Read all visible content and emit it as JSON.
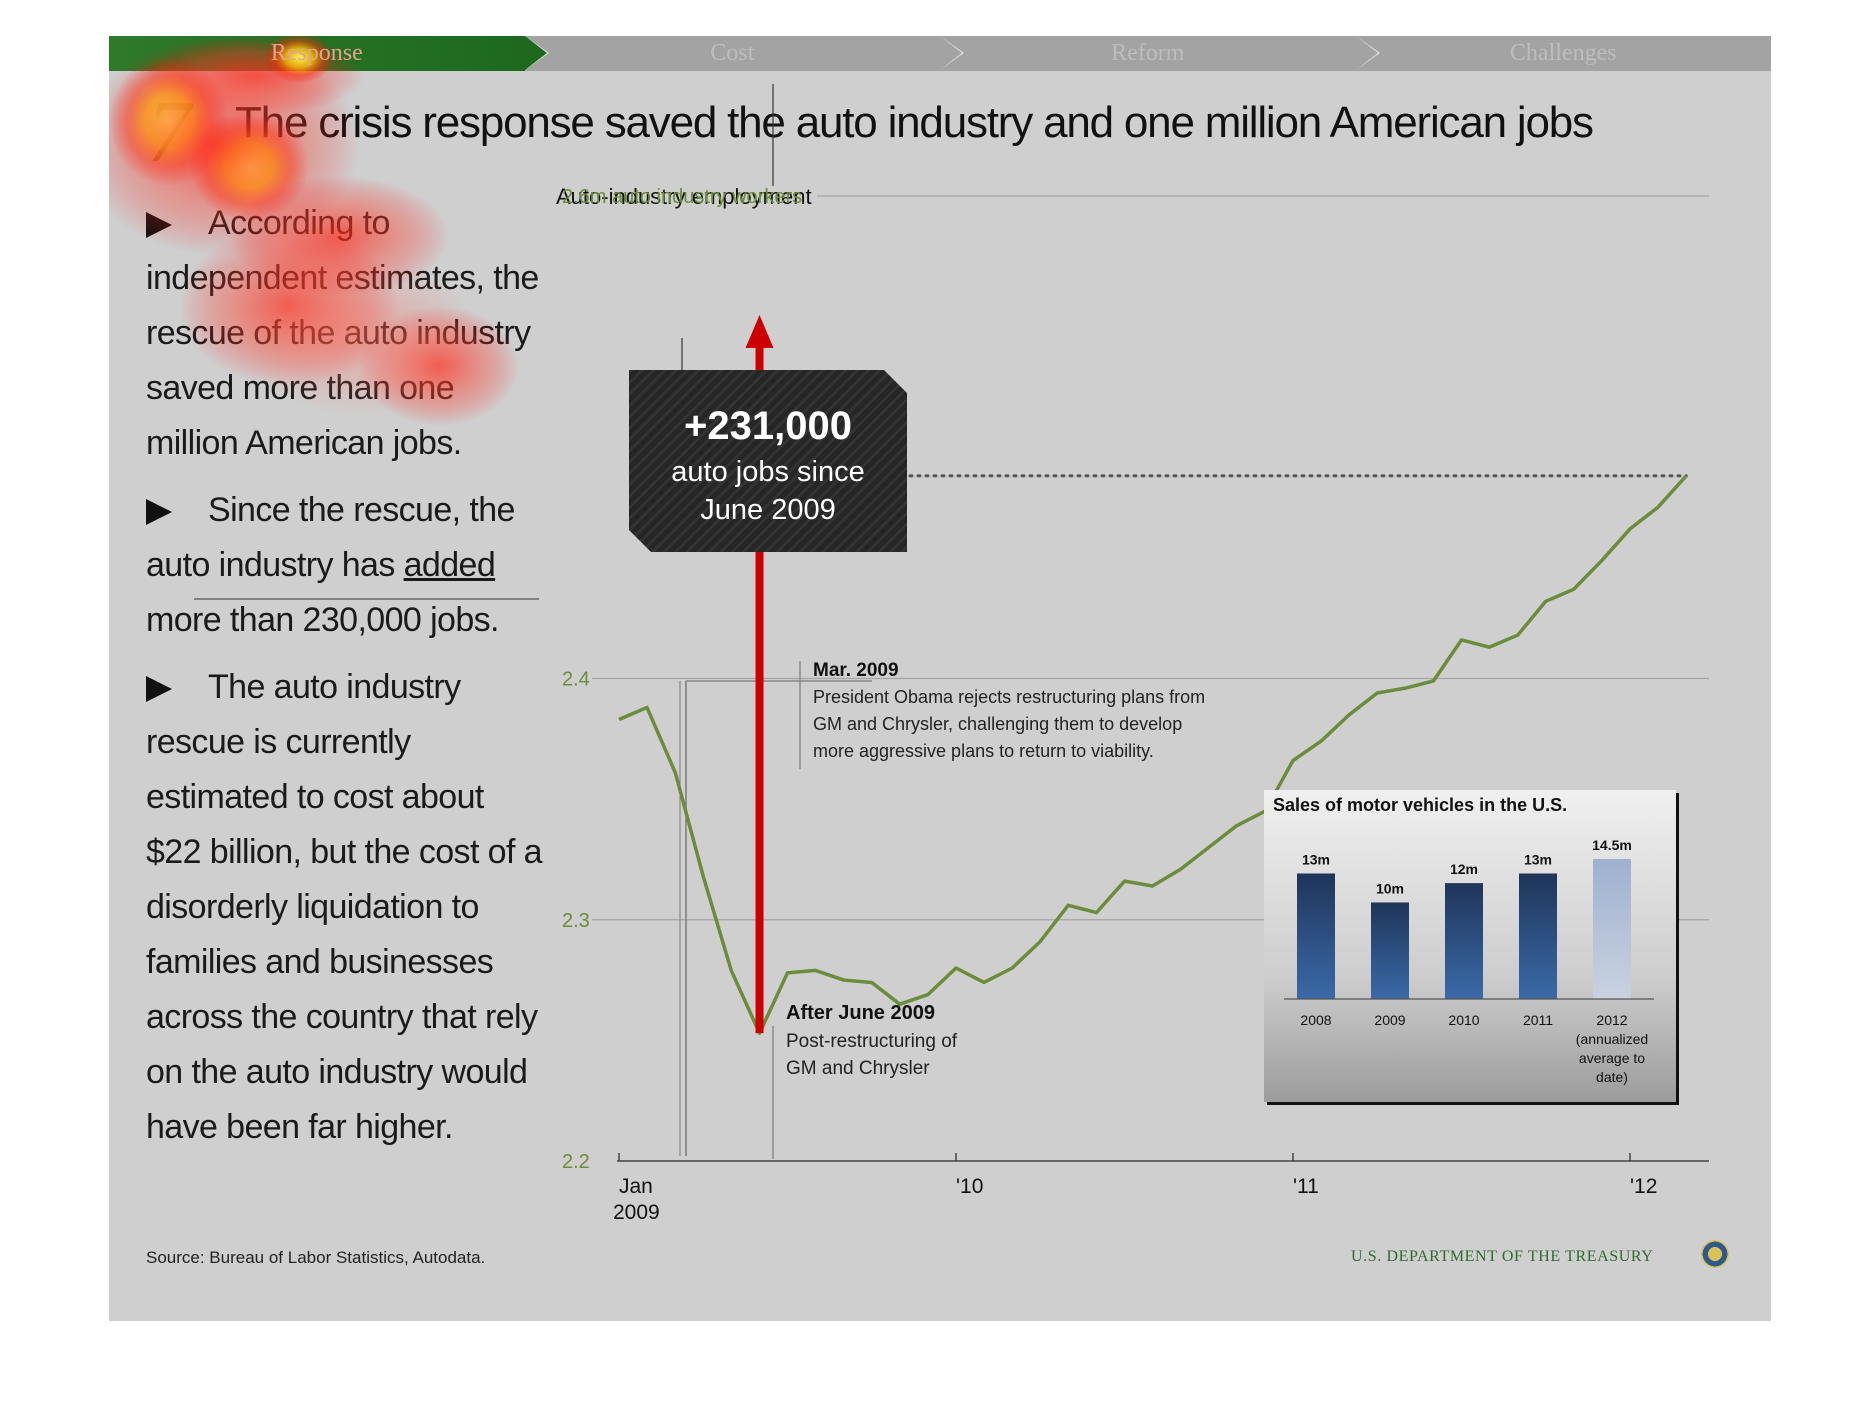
{
  "nav": {
    "tabs": [
      {
        "label": "Response",
        "active": true
      },
      {
        "label": "Cost",
        "active": false
      },
      {
        "label": "Reform",
        "active": false
      },
      {
        "label": "Challenges",
        "active": false
      }
    ]
  },
  "slide_number": "7",
  "title": "The crisis response saved the auto industry and one million American jobs",
  "bullets": {
    "b1": "According to independent estimates, the rescue of the auto industry saved more than one million American jobs.",
    "b2_pre": "Since the rescue, the auto industry has ",
    "b2_underline": "added",
    "b2_post": " more than 230,000 jobs.",
    "b3": "The auto industry rescue is currently estimated to cost about $22 billion, but the cost of a disorderly liquidation to families and businesses across the country that rely on the auto industry would have been far higher."
  },
  "source": "Source: Bureau of Labor Statistics, Autodata.",
  "footer": {
    "department": "U.S. DEPARTMENT OF THE TREASURY",
    "seal_icon": "treasury-seal-icon"
  },
  "callout": {
    "value": "+231,000",
    "line1": "auto jobs since",
    "line2": "June 2009"
  },
  "annotations": {
    "mar2009": {
      "title": "Mar. 2009",
      "lines": [
        "President Obama rejects restructuring plans from",
        "GM and Chrysler, challenging them to develop",
        "more aggressive plans to return to viability."
      ]
    },
    "jun2009": {
      "title": "After June 2009",
      "lines": [
        "Post-restructuring of",
        "GM and Chrysler"
      ]
    }
  },
  "colors": {
    "line": "#6b8c3a",
    "arrow": "#cc0000",
    "bar_dark": "#1f3559",
    "bar_light": "#9fb1cf",
    "nav_active": "#1d6a1f"
  },
  "chart_data": [
    {
      "type": "line",
      "title": "Auto-industry employment",
      "ylabel": "",
      "unit": "m",
      "ylim": [
        2.2,
        2.6
      ],
      "yticks": [
        "2.2",
        "2.3",
        "2.4",
        "2.6m auto industry workers"
      ],
      "xticks": [
        {
          "label": "Jan",
          "label2": "2009",
          "x": 2009.0
        },
        {
          "label": "'10",
          "label2": "",
          "x": 2010.0
        },
        {
          "label": "'11",
          "label2": "",
          "x": 2011.0
        },
        {
          "label": "'12",
          "label2": "",
          "x": 2012.0
        }
      ],
      "xlim": [
        2009.0,
        2012.25
      ],
      "dotted_target": 2.484,
      "series": [
        {
          "name": "",
          "points": [
            [
              2009.0,
              2.383
            ],
            [
              2009.083,
              2.388
            ],
            [
              2009.167,
              2.361
            ],
            [
              2009.25,
              2.318
            ],
            [
              2009.333,
              2.279
            ],
            [
              2009.417,
              2.253
            ],
            [
              2009.5,
              2.278
            ],
            [
              2009.583,
              2.279
            ],
            [
              2009.667,
              2.275
            ],
            [
              2009.75,
              2.274
            ],
            [
              2009.833,
              2.265
            ],
            [
              2009.917,
              2.269
            ],
            [
              2010.0,
              2.28
            ],
            [
              2010.083,
              2.274
            ],
            [
              2010.167,
              2.28
            ],
            [
              2010.25,
              2.291
            ],
            [
              2010.333,
              2.306
            ],
            [
              2010.417,
              2.303
            ],
            [
              2010.5,
              2.316
            ],
            [
              2010.583,
              2.314
            ],
            [
              2010.667,
              2.321
            ],
            [
              2010.75,
              2.33
            ],
            [
              2010.833,
              2.339
            ],
            [
              2010.917,
              2.345
            ],
            [
              2011.0,
              2.366
            ],
            [
              2011.083,
              2.374
            ],
            [
              2011.167,
              2.385
            ],
            [
              2011.25,
              2.394
            ],
            [
              2011.333,
              2.396
            ],
            [
              2011.417,
              2.399
            ],
            [
              2011.5,
              2.416
            ],
            [
              2011.583,
              2.413
            ],
            [
              2011.667,
              2.418
            ],
            [
              2011.75,
              2.432
            ],
            [
              2011.833,
              2.437
            ],
            [
              2011.917,
              2.449
            ],
            [
              2012.0,
              2.462
            ],
            [
              2012.083,
              2.471
            ],
            [
              2012.167,
              2.484
            ]
          ]
        }
      ]
    },
    {
      "type": "bar",
      "title": "Sales of motor vehicles in the U.S.",
      "categories": [
        "2008",
        "2009",
        "2010",
        "2011",
        "2012 (annualized average to date)"
      ],
      "category_lines": [
        [
          "2008"
        ],
        [
          "2009"
        ],
        [
          "2010"
        ],
        [
          "2011"
        ],
        [
          "2012",
          "(annualized",
          "average to",
          "date)"
        ]
      ],
      "values": [
        13,
        10,
        12,
        13,
        14.5
      ],
      "value_labels": [
        "13m",
        "10m",
        "12m",
        "13m",
        "14.5m"
      ],
      "unit": "m"
    }
  ]
}
